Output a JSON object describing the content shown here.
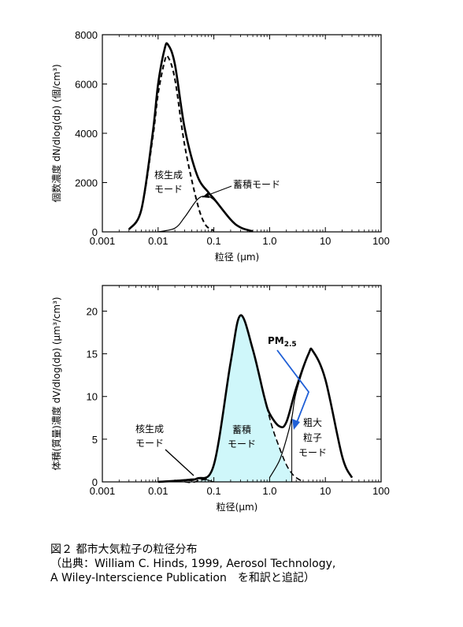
{
  "chart_data": [
    {
      "type": "line",
      "xscale": "log",
      "xlim": [
        0.001,
        100
      ],
      "ylim": [
        0,
        8000
      ],
      "x_ticks": [
        "0.001",
        "0.01",
        "0.1",
        "1.0",
        "10",
        "100"
      ],
      "y_ticks": [
        "0",
        "2000",
        "4000",
        "6000",
        "8000"
      ],
      "xlabel": "粒径 (μm)",
      "ylabel": "個数濃度 dN/dlog(dp) (個/cm³)",
      "series": [
        {
          "name": "total",
          "x": [
            0.003,
            0.005,
            0.008,
            0.01,
            0.013,
            0.015,
            0.02,
            0.03,
            0.05,
            0.08,
            0.1,
            0.2,
            0.3,
            0.5
          ],
          "values": [
            100,
            900,
            4000,
            6000,
            7400,
            7600,
            6800,
            4200,
            2300,
            1600,
            1350,
            500,
            180,
            20
          ]
        },
        {
          "name": "nucleation",
          "x": [
            0.003,
            0.005,
            0.008,
            0.01,
            0.013,
            0.015,
            0.02,
            0.03,
            0.05,
            0.07,
            0.1
          ],
          "values": [
            100,
            900,
            3800,
            5600,
            6900,
            7100,
            6200,
            3500,
            1200,
            300,
            50
          ]
        },
        {
          "name": "accumulation",
          "x": [
            0.01,
            0.02,
            0.03,
            0.05,
            0.07,
            0.1,
            0.2,
            0.3,
            0.5
          ],
          "values": [
            0,
            150,
            600,
            1300,
            1450,
            1300,
            500,
            180,
            20
          ]
        }
      ],
      "annotations": [
        {
          "text": "核生成\nモード"
        },
        {
          "text": "蓄積モード"
        }
      ]
    },
    {
      "type": "area",
      "xscale": "log",
      "xlim": [
        0.001,
        100
      ],
      "ylim": [
        0,
        23
      ],
      "x_ticks": [
        "0.001",
        "0.01",
        "0.1",
        "1.0",
        "10",
        "100"
      ],
      "y_ticks": [
        "0",
        "5",
        "10",
        "15",
        "20"
      ],
      "xlabel": "粒径(μm)",
      "ylabel": "体積(質量)濃度 dV/dlog(dp) (μm³/cm³)",
      "series": [
        {
          "name": "total",
          "x": [
            0.01,
            0.03,
            0.05,
            0.1,
            0.2,
            0.3,
            0.5,
            0.8,
            1.0,
            1.5,
            2.0,
            3.0,
            5.0,
            6.0,
            10,
            20,
            30
          ],
          "values": [
            0,
            0.2,
            0.4,
            2.0,
            14.0,
            19.5,
            15.5,
            10.0,
            8.0,
            6.5,
            7.0,
            11.0,
            15.0,
            15.3,
            12.0,
            3.0,
            0.5
          ]
        },
        {
          "name": "accumulation (shaded ≤ 2.5 μm)",
          "x": [
            0.03,
            0.05,
            0.1,
            0.2,
            0.3,
            0.5,
            1.0,
            1.5,
            2.0,
            2.5,
            3.0,
            4.0
          ],
          "values": [
            0,
            0.1,
            2.0,
            14.0,
            19.5,
            15.5,
            7.5,
            4.0,
            2.0,
            1.0,
            0.5,
            0
          ]
        },
        {
          "name": "coarse",
          "x": [
            1.0,
            1.5,
            2.0,
            2.5,
            3.0,
            5.0,
            6.0,
            10,
            20,
            30
          ],
          "values": [
            0.5,
            2.5,
            5.0,
            7.5,
            10.5,
            15.0,
            15.3,
            12.0,
            3.0,
            0.5
          ]
        }
      ],
      "annotations": [
        {
          "text": "PM2.5",
          "main": "PM",
          "sub": "2.5",
          "x": 2.5
        },
        {
          "text": "核生成\nモード"
        },
        {
          "text": "蓄積\nモード"
        },
        {
          "text": "粗大\n粒子\nモード"
        }
      ],
      "fill_color": "#cff7fa",
      "pm_arrow_color": "#1f5fd6"
    }
  ],
  "caption": {
    "line1": "図２ 都市大気粒子の粒径分布",
    "line2": "（出典：William C. Hinds, 1999, Aerosol Technology,",
    "line3": "A Wiley-Interscience Publication　を和訳と追記）"
  }
}
